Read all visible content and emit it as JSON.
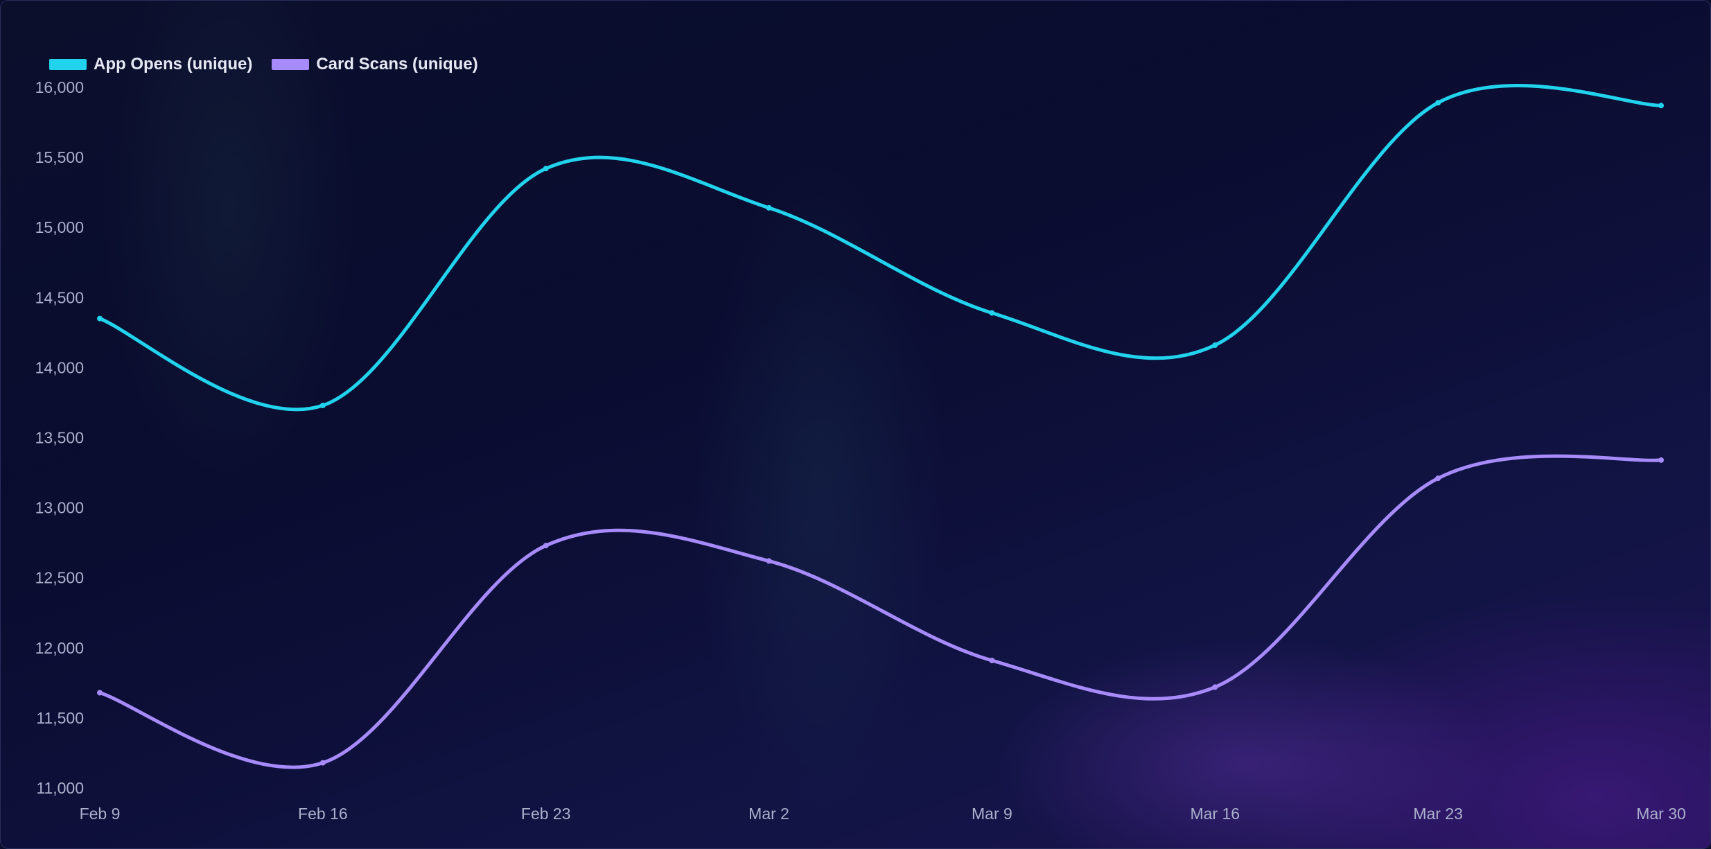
{
  "chart_data": {
    "type": "line",
    "x": [
      "Feb 9",
      "Feb 16",
      "Feb 23",
      "Mar 2",
      "Mar 9",
      "Mar 16",
      "Mar 23",
      "Mar 30"
    ],
    "series": [
      {
        "name": "App Opens (unique)",
        "color": "#22d3ee",
        "values": [
          14350,
          13730,
          15420,
          15140,
          14390,
          14160,
          15890,
          15870
        ]
      },
      {
        "name": "Card Scans (unique)",
        "color": "#a78bfa",
        "values": [
          11680,
          11180,
          12730,
          12620,
          11910,
          11720,
          13210,
          13340
        ]
      }
    ],
    "ylim": [
      11000,
      16000
    ],
    "yticks": [
      "11,000",
      "11,500",
      "12,000",
      "12,500",
      "13,000",
      "13,500",
      "14,000",
      "14,500",
      "15,000",
      "15,500",
      "16,000"
    ],
    "ytick_values": [
      11000,
      11500,
      12000,
      12500,
      13000,
      13500,
      14000,
      14500,
      15000,
      15500,
      16000
    ],
    "legend_position": "top-left",
    "grid": false
  }
}
